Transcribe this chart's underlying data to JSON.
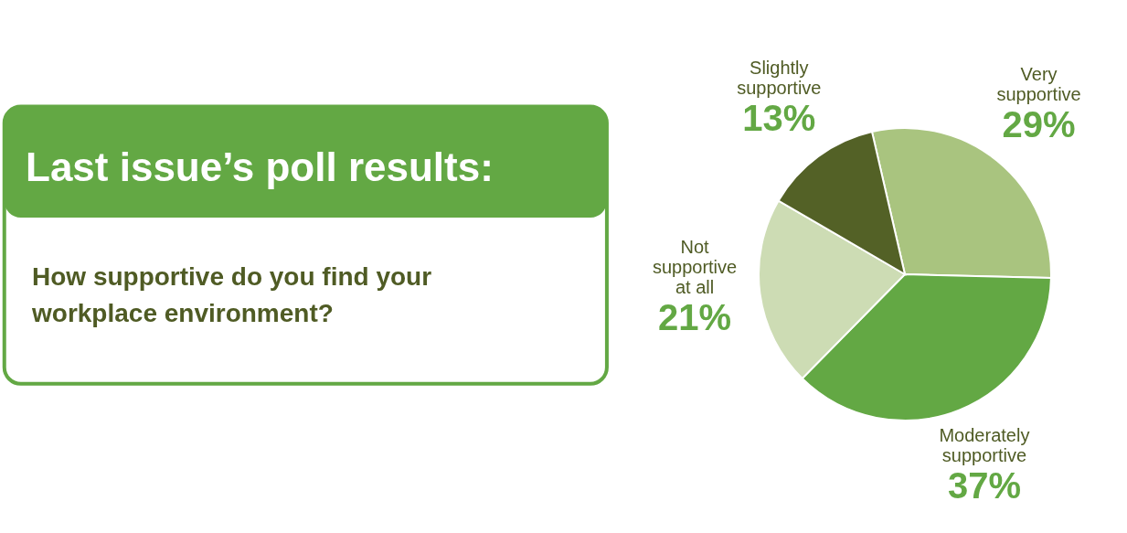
{
  "chart_data": {
    "type": "pie",
    "title": "Last issue’s poll results:",
    "subtitle": "How supportive do you find your workplace environment?",
    "categories": [
      "Very supportive",
      "Moderately supportive",
      "Not supportive at all",
      "Slightly supportive"
    ],
    "values": [
      29,
      37,
      21,
      13
    ],
    "colors": [
      "#a9c47f",
      "#63a844",
      "#cddcb4",
      "#536126"
    ],
    "value_labels": [
      "29%",
      "37%",
      "21%",
      "13%"
    ],
    "legend": false
  }
}
